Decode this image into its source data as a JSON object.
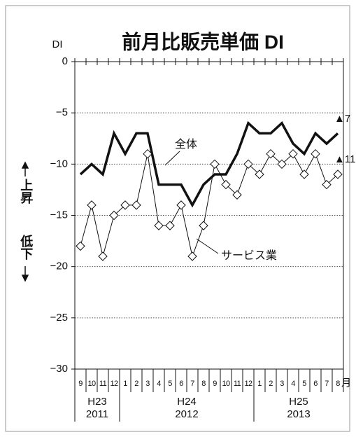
{
  "chart_data": {
    "type": "line",
    "title": "前月比販売単価 DI",
    "y_label": "DI",
    "x_unit": "月",
    "y_side_up": "上昇",
    "y_side_down": "低下",
    "categories": [
      "9",
      "10",
      "11",
      "12",
      "1",
      "2",
      "3",
      "4",
      "5",
      "6",
      "7",
      "8",
      "9",
      "10",
      "11",
      "12",
      "1",
      "2",
      "3",
      "4",
      "5",
      "6",
      "7",
      "8"
    ],
    "year_groups": [
      {
        "era": "H23",
        "year": "2011"
      },
      {
        "era": "H24",
        "year": "2012"
      },
      {
        "era": "H25",
        "year": "2013"
      }
    ],
    "series": [
      {
        "name": "全体",
        "color": "#111111",
        "values": [
          -11,
          -10,
          -11,
          -7,
          -9,
          -7,
          -7,
          -12,
          -12,
          -12,
          -14,
          -12,
          -11,
          -11,
          -9,
          -6,
          -7,
          -7,
          -6,
          -8,
          -9,
          -7,
          -8,
          -7
        ]
      },
      {
        "name": "サービス業",
        "color": "#111111",
        "values": [
          -18,
          -14,
          -19,
          -15,
          -14,
          -14,
          -9,
          -16,
          -16,
          -14,
          -19,
          -16,
          -10,
          -12,
          -13,
          -10,
          -11,
          -9,
          -10,
          -9,
          -11,
          -9,
          -12,
          -11
        ]
      }
    ],
    "annotations": [
      "▲7",
      "▲11"
    ],
    "ylim": [
      -30,
      0
    ],
    "yticks": [
      0,
      {
        "value": -5,
        "label": "−5"
      },
      {
        "value": -10,
        "label": "−10"
      },
      {
        "value": -15,
        "label": "−15"
      },
      {
        "value": -20,
        "label": "−20"
      },
      {
        "value": -25,
        "label": "−25"
      },
      {
        "value": -30,
        "label": "−30"
      }
    ],
    "grid": true
  }
}
